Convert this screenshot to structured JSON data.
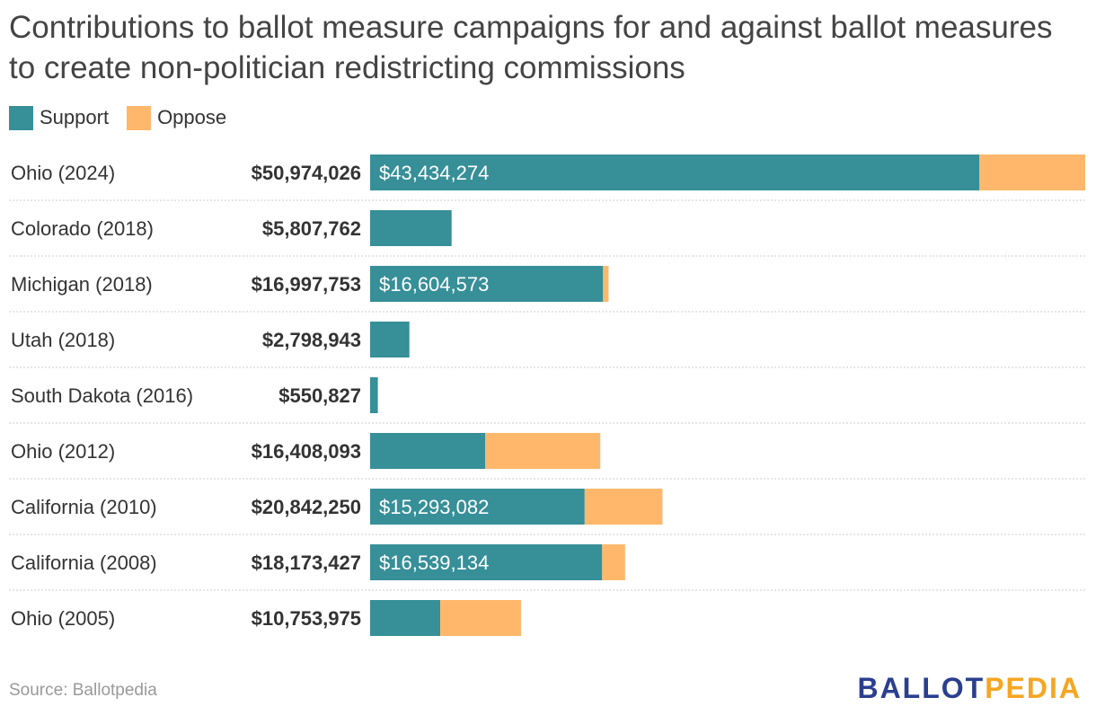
{
  "title": "Contributions to ballot measure campaigns for and against ballot measures to create non-politician redistricting commissions",
  "legend": [
    {
      "label": "Support",
      "color": "#378f98"
    },
    {
      "label": "Oppose",
      "color": "#ffb86b"
    }
  ],
  "chart_data": {
    "type": "bar",
    "orientation": "horizontal",
    "stacked": true,
    "title": "Contributions to ballot measure campaigns for and against ballot measures to create non-politician redistricting commissions",
    "categories": [
      "Ohio (2024)",
      "Colorado (2018)",
      "Michigan (2018)",
      "Utah (2018)",
      "South Dakota (2016)",
      "Ohio (2012)",
      "California (2010)",
      "California (2008)",
      "Ohio (2005)"
    ],
    "totals": [
      50974026,
      5807762,
      16997753,
      2798943,
      550827,
      16408093,
      20842250,
      18173427,
      10753975
    ],
    "total_labels": [
      "$50,974,026",
      "$5,807,762",
      "$16,997,753",
      "$2,798,943",
      "$550,827",
      "$16,408,093",
      "$20,842,250",
      "$18,173,427",
      "$10,753,975"
    ],
    "series": [
      {
        "name": "Support",
        "color": "#378f98",
        "values": [
          43434274,
          5807762,
          16604573,
          2798943,
          550827,
          8200000,
          15293082,
          16539134,
          5000000
        ],
        "labels": [
          "$43,434,274",
          "",
          "$16,604,573",
          "",
          "",
          "",
          "$15,293,082",
          "$16,539,134",
          ""
        ]
      },
      {
        "name": "Oppose",
        "color": "#ffb86b",
        "values": [
          7539752,
          0,
          393180,
          0,
          0,
          8208093,
          5549168,
          1634293,
          5753975
        ]
      }
    ],
    "xlim": [
      0,
      50974026
    ],
    "grid": "row separators (dotted)",
    "legend_position": "top-left"
  },
  "source": "Source: Ballotpedia",
  "logo": {
    "part1": "BALLOT",
    "part2": "PEDIA"
  }
}
